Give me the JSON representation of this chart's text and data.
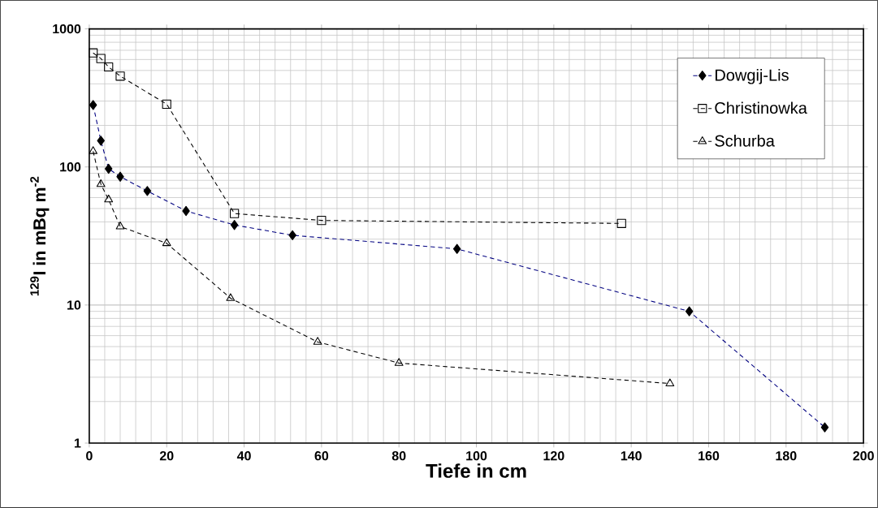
{
  "chart_data": {
    "type": "line",
    "xlabel": "Tiefe in cm",
    "ylabel": "$^{129}$I in mBq m$^{-2}$",
    "xlim": [
      0,
      200
    ],
    "xticks": [
      0,
      20,
      40,
      60,
      80,
      100,
      120,
      140,
      160,
      180,
      200
    ],
    "ylim": [
      1,
      1000
    ],
    "yticks": [
      1,
      10,
      100,
      1000
    ],
    "log": "y",
    "grid": true,
    "legend": "top right",
    "line_style": "dashed",
    "series": [
      {
        "name": "Dowgij-Lis",
        "color": "#000080",
        "marker": "diamond",
        "x": [
          1,
          3,
          5,
          8,
          15,
          25,
          37.5,
          52.5,
          95,
          155,
          190
        ],
        "values": [
          281,
          155,
          97,
          85,
          67,
          48,
          38,
          32,
          25.5,
          9,
          1.3
        ]
      },
      {
        "name": "Christinowka",
        "color": "#000000",
        "marker": "square",
        "x": [
          1,
          3,
          5,
          8,
          20,
          37.5,
          60,
          137.5
        ],
        "values": [
          670,
          610,
          530,
          455,
          285,
          46,
          41,
          39
        ]
      },
      {
        "name": "Schurba",
        "color": "#000000",
        "marker": "triangle",
        "x": [
          1,
          3,
          5,
          8,
          20,
          36.5,
          59,
          80,
          150
        ],
        "values": [
          130,
          75,
          58,
          37,
          28,
          11.2,
          5.4,
          3.8,
          2.7
        ]
      }
    ]
  }
}
